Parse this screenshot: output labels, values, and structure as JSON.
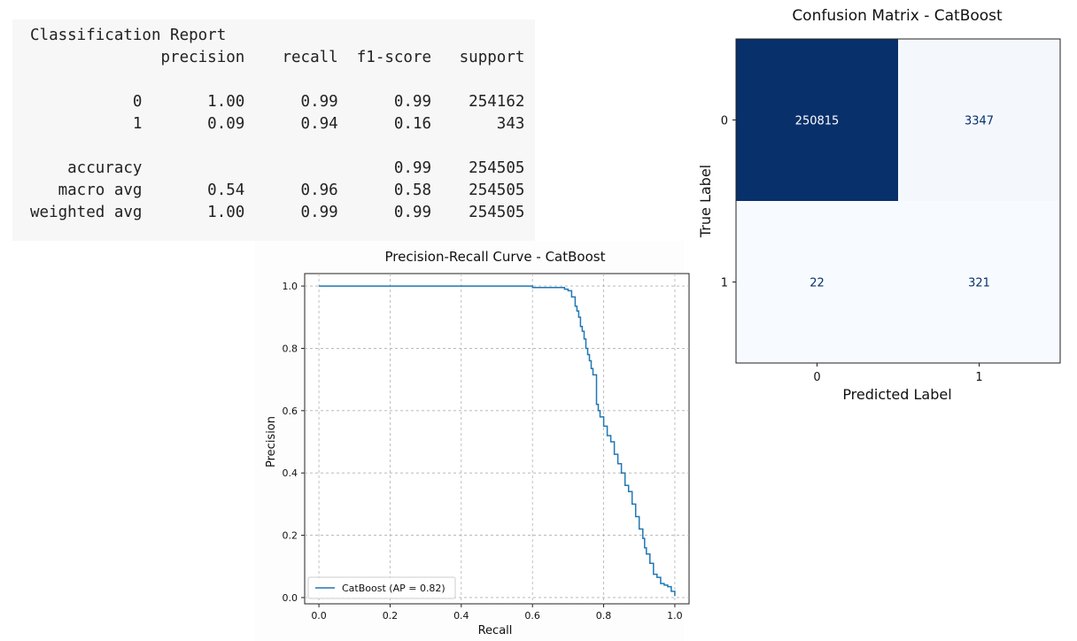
{
  "classification_report": {
    "title": "Classification Report",
    "columns": [
      "precision",
      "recall",
      "f1-score",
      "support"
    ],
    "rows": [
      {
        "label": "0",
        "precision": "1.00",
        "recall": "0.99",
        "f1": "0.99",
        "support": "254162"
      },
      {
        "label": "1",
        "precision": "0.09",
        "recall": "0.94",
        "f1": "0.16",
        "support": "343"
      },
      {
        "blank": true
      },
      {
        "label": "accuracy",
        "precision": "",
        "recall": "",
        "f1": "0.99",
        "support": "254505"
      },
      {
        "label": "macro avg",
        "precision": "0.54",
        "recall": "0.96",
        "f1": "0.58",
        "support": "254505"
      },
      {
        "label": "weighted avg",
        "precision": "1.00",
        "recall": "0.99",
        "f1": "0.99",
        "support": "254505"
      }
    ]
  },
  "chart_data": [
    {
      "type": "line",
      "title": "Precision-Recall Curve - CatBoost",
      "xlabel": "Recall",
      "ylabel": "Precision",
      "xlim": [
        -0.04,
        1.04
      ],
      "ylim": [
        -0.02,
        1.04
      ],
      "xticks": [
        "0.0",
        "0.2",
        "0.4",
        "0.6",
        "0.8",
        "1.0"
      ],
      "yticks": [
        "0.0",
        "0.2",
        "0.4",
        "0.6",
        "0.8",
        "1.0"
      ],
      "grid": true,
      "legend": "lower-left",
      "series": [
        {
          "name": "CatBoost  (AP = 0.82)",
          "color": "#1f77b4",
          "step": true,
          "x": [
            0.0,
            0.58,
            0.6,
            0.68,
            0.69,
            0.7,
            0.71,
            0.72,
            0.725,
            0.73,
            0.735,
            0.74,
            0.745,
            0.75,
            0.755,
            0.76,
            0.765,
            0.77,
            0.78,
            0.785,
            0.79,
            0.8,
            0.81,
            0.82,
            0.83,
            0.84,
            0.85,
            0.86,
            0.87,
            0.88,
            0.89,
            0.9,
            0.91,
            0.915,
            0.92,
            0.93,
            0.94,
            0.95,
            0.96,
            0.97,
            0.98,
            0.99,
            1.0
          ],
          "y": [
            1.0,
            1.0,
            0.995,
            0.995,
            0.99,
            0.985,
            0.965,
            0.935,
            0.92,
            0.9,
            0.87,
            0.855,
            0.83,
            0.8,
            0.78,
            0.76,
            0.735,
            0.715,
            0.62,
            0.6,
            0.58,
            0.55,
            0.52,
            0.5,
            0.46,
            0.43,
            0.4,
            0.36,
            0.34,
            0.3,
            0.26,
            0.22,
            0.19,
            0.16,
            0.14,
            0.11,
            0.075,
            0.065,
            0.045,
            0.04,
            0.035,
            0.02,
            0.005
          ]
        }
      ]
    },
    {
      "type": "heatmap",
      "title": "Confusion Matrix - CatBoost",
      "xlabel": "Predicted Label",
      "ylabel": "True Label",
      "x_categories": [
        "0",
        "1"
      ],
      "y_categories": [
        "0",
        "1"
      ],
      "values": [
        [
          250815,
          3347
        ],
        [
          22,
          321
        ]
      ],
      "colormap": "Blues",
      "colors": {
        "high": "#08306b",
        "low": "#f7fbff",
        "text_on_dark": "#ffffff",
        "text_on_light": "#08306b"
      }
    }
  ]
}
